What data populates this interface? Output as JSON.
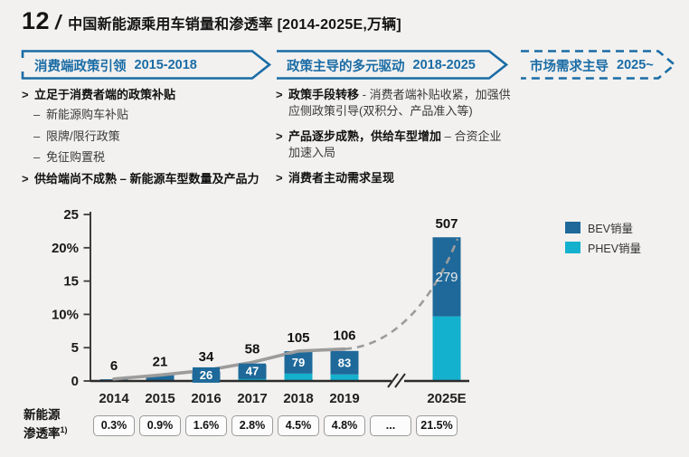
{
  "header": {
    "page_number": "12",
    "separator": "/",
    "title": "中国新能源乘用车销量和渗透率 [2014-2025E,万辆]"
  },
  "phases": [
    {
      "label": "消费端政策引领",
      "period": "2015-2018",
      "style": "solid"
    },
    {
      "label": "政策主导的多元驱动",
      "period": "2018-2025",
      "style": "solid"
    },
    {
      "label": "市场需求主导",
      "period": "2025~",
      "style": "dashed"
    }
  ],
  "left_panel": {
    "items": [
      {
        "marker": ">",
        "indent": false,
        "segments": [
          {
            "text": "立足于消费者端的政策补贴",
            "bold": true
          }
        ]
      },
      {
        "marker": "–",
        "indent": true,
        "segments": [
          {
            "text": "新能源购车补贴",
            "bold": false
          }
        ]
      },
      {
        "marker": "–",
        "indent": true,
        "segments": [
          {
            "text": "限牌/限行政策",
            "bold": false
          }
        ]
      },
      {
        "marker": "–",
        "indent": true,
        "segments": [
          {
            "text": "免征购置税",
            "bold": false
          }
        ]
      },
      {
        "marker": ">",
        "indent": false,
        "segments": [
          {
            "text": "供给端尚不成熟 – 新能源车型数量及产品力",
            "bold": true
          }
        ]
      }
    ]
  },
  "right_panel": {
    "items": [
      {
        "marker": ">",
        "indent": false,
        "segments": [
          {
            "text": "政策手段转移",
            "bold": true
          },
          {
            "text": " - 消费者端补贴收紧，加强供应侧政策引导(双积分、产品准入等)",
            "bold": false
          }
        ]
      },
      {
        "marker": ">",
        "indent": false,
        "segments": [
          {
            "text": "产品逐步成熟，供给车型增加",
            "bold": true
          },
          {
            "text": " – 合资企业加速入局",
            "bold": false
          }
        ]
      },
      {
        "marker": ">",
        "indent": false,
        "segments": [
          {
            "text": "消费者主动需求呈现",
            "bold": true
          }
        ]
      }
    ]
  },
  "chart_data": {
    "type": "combo-stacked-bar-line",
    "title": "中国新能源乘用车销量和渗透率",
    "unit": "万辆",
    "categories": [
      "2014",
      "2015",
      "2016",
      "2017",
      "2018",
      "2019",
      "2025E"
    ],
    "series": [
      {
        "name": "BEV销量",
        "color": "#1e699a",
        "values": [
          6,
          21,
          26,
          47,
          79,
          83,
          279
        ]
      },
      {
        "name": "PHEV销量",
        "color": "#14b1ce",
        "values": [
          0,
          0,
          8,
          11,
          26,
          23,
          228
        ]
      }
    ],
    "totals": [
      6,
      21,
      34,
      58,
      105,
      106,
      507
    ],
    "bev_segment_labels": [
      null,
      null,
      "26",
      "47",
      "79",
      "83",
      "279"
    ],
    "line_series": {
      "name": "新能源渗透率",
      "values_pct": [
        0.3,
        0.9,
        1.6,
        2.8,
        4.5,
        4.8,
        21.5
      ],
      "dashed_from_index": 5,
      "color": "#9c9c9c"
    },
    "y_axis": {
      "ticks": [
        "0",
        "5",
        "10%",
        "15",
        "20%",
        "25"
      ],
      "max": 25
    },
    "x_axis_break_between": [
      "2019",
      "2025E"
    ],
    "legend_position": "right"
  },
  "legend": [
    {
      "label": "BEV销量",
      "color": "#1e699a"
    },
    {
      "label": "PHEV销量",
      "color": "#14b1ce"
    }
  ],
  "penetration_row": {
    "label_line1": "新能源",
    "label_line2": "渗透率",
    "footnote": "1)",
    "values": [
      "0.3%",
      "0.9%",
      "1.6%",
      "2.8%",
      "4.5%",
      "4.8%",
      "...",
      "21.5%"
    ]
  },
  "colors": {
    "accent_blue": "#1a6ca6",
    "bev_blue": "#1e699a",
    "phev_cyan": "#14b1ce",
    "line_gray": "#9c9c9c",
    "background": "#f2f1ef"
  }
}
